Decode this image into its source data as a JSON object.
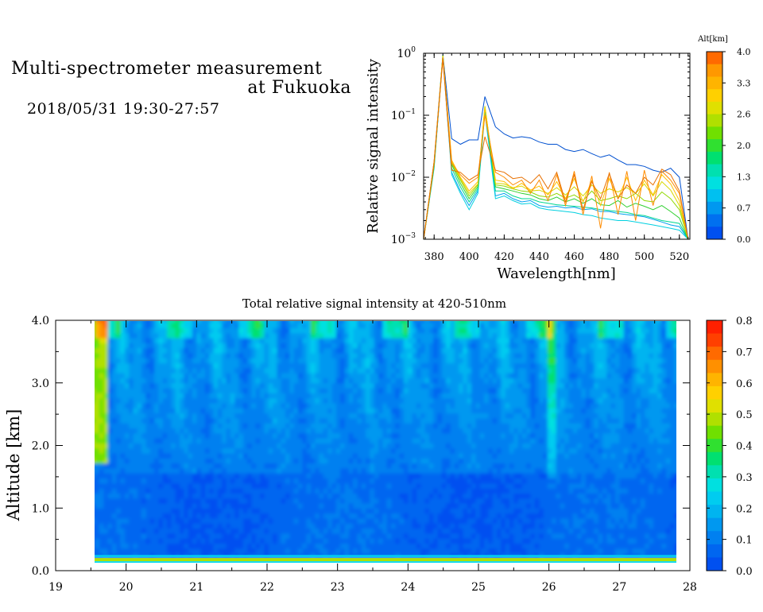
{
  "header": {
    "title_line1": "Multi-spectrometer measurement",
    "title_line2": "at Fukuoka",
    "datetime": "2018/05/31 19:30-27:57"
  },
  "chart_data": [
    {
      "type": "line",
      "xlabel": "Wavelength[nm]",
      "ylabel": "Relative signal intensity",
      "log_y": true,
      "xlim": [
        374,
        526
      ],
      "ylim": [
        0.001,
        1
      ],
      "xticks": [
        380,
        400,
        420,
        440,
        460,
        480,
        500,
        520
      ],
      "yticks": [
        {
          "value": 1,
          "base": "10",
          "exp": "0"
        },
        {
          "value": 0.1,
          "base": "10",
          "exp": "−1"
        },
        {
          "value": 0.01,
          "base": "10",
          "exp": "−2"
        },
        {
          "value": 0.001,
          "base": "10",
          "exp": "−3"
        }
      ],
      "x": [
        374,
        380,
        385,
        390,
        395,
        400,
        405,
        409,
        415,
        420,
        425,
        430,
        435,
        440,
        445,
        450,
        455,
        460,
        465,
        470,
        475,
        480,
        485,
        490,
        495,
        500,
        505,
        510,
        515,
        520,
        525
      ],
      "colorbar": {
        "title": "Alt[km]",
        "labels": [
          "4.0",
          "3.3",
          "2.6",
          "2.0",
          "1.3",
          "0.7",
          "0.0"
        ],
        "colors": [
          "#ff6a00",
          "#ff9800",
          "#ffb400",
          "#ffd000",
          "#e0e000",
          "#b0e000",
          "#70e000",
          "#30e030",
          "#00e070",
          "#00e0b0",
          "#00e0e0",
          "#00c0f0",
          "#0098f0",
          "#0070f0",
          "#0050f0"
        ]
      },
      "series": [
        {
          "color": "#0050d0",
          "values": [
            0.001,
            0.018,
            0.95,
            0.042,
            0.034,
            0.04,
            0.04,
            0.2,
            0.065,
            0.05,
            0.043,
            0.045,
            0.043,
            0.037,
            0.034,
            0.034,
            0.028,
            0.026,
            0.028,
            0.024,
            0.021,
            0.023,
            0.019,
            0.016,
            0.016,
            0.015,
            0.013,
            0.012,
            0.014,
            0.01,
            0.001
          ]
        },
        {
          "color": "#00a0f0",
          "values": [
            0.001,
            0.015,
            0.9,
            0.012,
            0.006,
            0.0035,
            0.006,
            0.12,
            0.005,
            0.0055,
            0.0045,
            0.004,
            0.0042,
            0.0035,
            0.0033,
            0.0034,
            0.0032,
            0.0033,
            0.003,
            0.0031,
            0.0028,
            0.0028,
            0.0026,
            0.0025,
            0.0024,
            0.0023,
            0.0021,
            0.0019,
            0.0017,
            0.0016,
            0.001
          ]
        },
        {
          "color": "#00d0e0",
          "values": [
            0.001,
            0.014,
            0.9,
            0.011,
            0.0055,
            0.003,
            0.0055,
            0.11,
            0.0045,
            0.005,
            0.0042,
            0.0037,
            0.0038,
            0.0032,
            0.003,
            0.0029,
            0.0028,
            0.0027,
            0.0025,
            0.0024,
            0.0022,
            0.0021,
            0.002,
            0.002,
            0.0019,
            0.0018,
            0.0017,
            0.0016,
            0.0015,
            0.0014,
            0.001
          ]
        },
        {
          "color": "#00d890",
          "values": [
            0.001,
            0.015,
            0.92,
            0.014,
            0.007,
            0.004,
            0.0065,
            0.13,
            0.006,
            0.006,
            0.005,
            0.0045,
            0.0045,
            0.004,
            0.0038,
            0.0036,
            0.0035,
            0.0034,
            0.0033,
            0.0032,
            0.003,
            0.0029,
            0.0028,
            0.0027,
            0.0025,
            0.0024,
            0.0022,
            0.002,
            0.0019,
            0.0018,
            0.001
          ]
        },
        {
          "color": "#30d030",
          "values": [
            0.001,
            0.016,
            0.92,
            0.016,
            0.008,
            0.0045,
            0.007,
            0.13,
            0.007,
            0.0065,
            0.006,
            0.0055,
            0.0052,
            0.0045,
            0.0042,
            0.0048,
            0.004,
            0.0045,
            0.0038,
            0.0045,
            0.0036,
            0.0035,
            0.0042,
            0.0033,
            0.0038,
            0.0034,
            0.003,
            0.0035,
            0.0028,
            0.0022,
            0.001
          ]
        },
        {
          "color": "#90d800",
          "values": [
            0.001,
            0.016,
            0.92,
            0.017,
            0.009,
            0.005,
            0.0075,
            0.14,
            0.0075,
            0.0072,
            0.0065,
            0.006,
            0.0058,
            0.005,
            0.0048,
            0.0055,
            0.0046,
            0.0052,
            0.0042,
            0.006,
            0.0042,
            0.0045,
            0.005,
            0.0045,
            0.0055,
            0.0042,
            0.004,
            0.0058,
            0.0045,
            0.003,
            0.001
          ]
        },
        {
          "color": "#d8d800",
          "values": [
            0.001,
            0.017,
            0.9,
            0.018,
            0.0095,
            0.0055,
            0.0078,
            0.14,
            0.008,
            0.0078,
            0.0068,
            0.0072,
            0.006,
            0.0062,
            0.0055,
            0.0068,
            0.0052,
            0.007,
            0.005,
            0.0075,
            0.0055,
            0.0065,
            0.0058,
            0.0068,
            0.0055,
            0.0078,
            0.005,
            0.0085,
            0.0062,
            0.0035,
            0.001
          ]
        },
        {
          "color": "#ffc000",
          "values": [
            0.001,
            0.018,
            0.88,
            0.019,
            0.01,
            0.006,
            0.0085,
            0.13,
            0.009,
            0.0085,
            0.0065,
            0.008,
            0.0062,
            0.0072,
            0.0052,
            0.0085,
            0.0045,
            0.0095,
            0.004,
            0.0088,
            0.0035,
            0.0095,
            0.0045,
            0.01,
            0.0042,
            0.009,
            0.0052,
            0.011,
            0.0078,
            0.0042,
            0.001
          ]
        },
        {
          "color": "#ff8c00",
          "values": [
            0.001,
            0.018,
            0.85,
            0.017,
            0.011,
            0.008,
            0.01,
            0.1,
            0.012,
            0.01,
            0.0075,
            0.009,
            0.0055,
            0.009,
            0.0042,
            0.011,
            0.0035,
            0.0125,
            0.0025,
            0.0105,
            0.0015,
            0.012,
            0.0025,
            0.0125,
            0.002,
            0.013,
            0.0035,
            0.0125,
            0.009,
            0.0055,
            0.001
          ]
        },
        {
          "color": "#e87000",
          "values": [
            0.001,
            0.017,
            0.8,
            0.013,
            0.012,
            0.009,
            0.011,
            0.045,
            0.013,
            0.012,
            0.0095,
            0.01,
            0.008,
            0.011,
            0.0065,
            0.012,
            0.004,
            0.011,
            0.003,
            0.0085,
            0.0045,
            0.0115,
            0.0045,
            0.0075,
            0.0055,
            0.01,
            0.0075,
            0.0135,
            0.011,
            0.006,
            0.001
          ]
        }
      ]
    },
    {
      "type": "heatmap",
      "title": "Total relative signal intensity at 420-510nm",
      "ylabel": "Altitude [km]",
      "xlim": [
        19,
        28
      ],
      "ylim": [
        0,
        4
      ],
      "xticks": [
        "19",
        "20",
        "21",
        "22",
        "23",
        "24",
        "25",
        "26",
        "27",
        "28"
      ],
      "yticks": [
        "0.0",
        "1.0",
        "2.0",
        "3.0",
        "4.0"
      ],
      "data_x_range": [
        19.5,
        27.95
      ],
      "colorbar": {
        "labels": [
          "0.0",
          "0.1",
          "0.2",
          "0.3",
          "0.4",
          "0.5",
          "0.6",
          "0.7",
          "0.8"
        ],
        "range": [
          0,
          0.8
        ],
        "colors": [
          "#0050f0",
          "#0066f0",
          "#0080f0",
          "#0098f0",
          "#00b4f0",
          "#00ccf0",
          "#00e0e0",
          "#00e0b0",
          "#00e070",
          "#30e030",
          "#70e000",
          "#b0e000",
          "#e0e000",
          "#ffd000",
          "#ffb400",
          "#ff9000",
          "#ff6a00",
          "#ff4000",
          "#ff2000"
        ]
      },
      "features": {
        "low_band_altitude_km": 0.15,
        "high_intensity_time_h": 26.05,
        "left_edge_time_h": 19.5
      }
    }
  ]
}
